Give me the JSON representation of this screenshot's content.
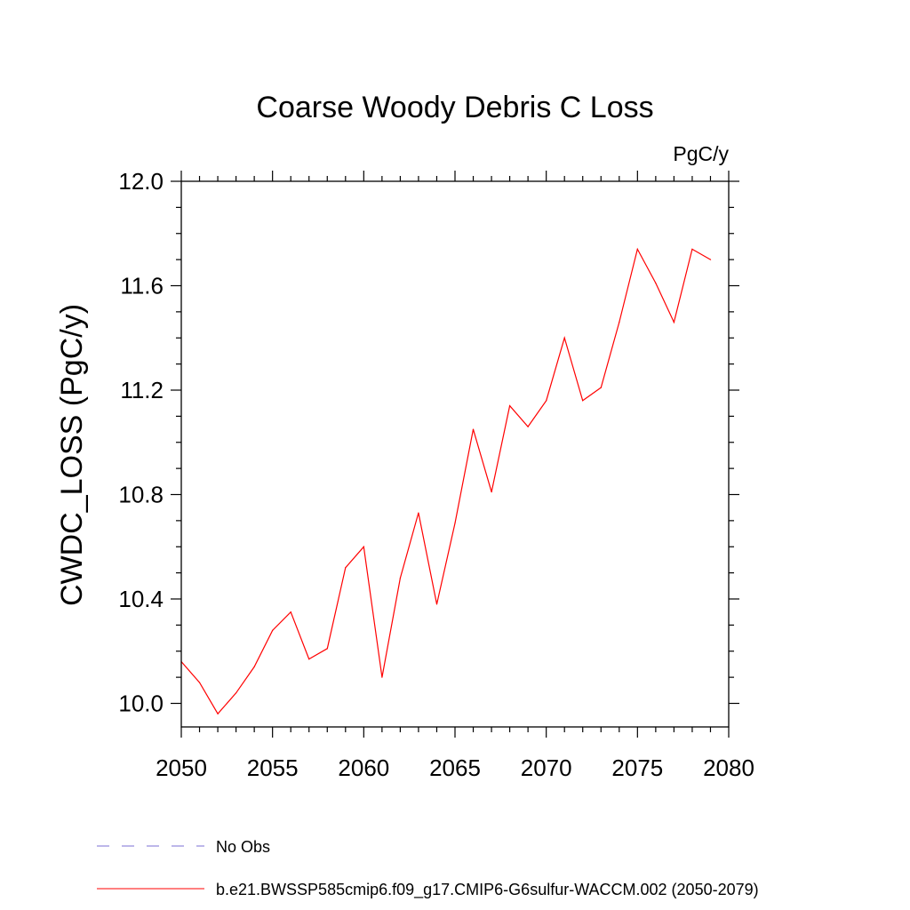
{
  "chart_data": {
    "type": "line",
    "title": "Coarse Woody Debris C Loss",
    "units_label": "PgC/y",
    "ylabel": "CWDC_LOSS  (PgC/y)",
    "xlabel": "",
    "xlim": [
      2050,
      2080
    ],
    "ylim": [
      9.9,
      12.05
    ],
    "x_ticks": [
      2050,
      2055,
      2060,
      2065,
      2070,
      2075,
      2080
    ],
    "y_ticks": [
      10.0,
      10.4,
      10.8,
      11.2,
      11.6,
      12.0
    ],
    "grid": false,
    "legend_position": "bottom-left",
    "series": [
      {
        "name": "b.e21.BWSSP585cmip6.f09_g17.CMIP6-G6sulfur-WACCM.002 (2050-2079)",
        "color": "#ff0000",
        "x": [
          2050,
          2051,
          2052,
          2053,
          2054,
          2055,
          2056,
          2057,
          2058,
          2059,
          2060,
          2061,
          2062,
          2063,
          2064,
          2065,
          2066,
          2067,
          2068,
          2069,
          2070,
          2071,
          2072,
          2073,
          2074,
          2075,
          2076,
          2077,
          2078,
          2079
        ],
        "y": [
          10.16,
          10.08,
          9.96,
          10.04,
          10.14,
          10.28,
          10.35,
          10.17,
          10.21,
          10.52,
          10.6,
          10.1,
          10.48,
          10.73,
          10.38,
          10.69,
          11.05,
          10.81,
          11.14,
          11.06,
          11.16,
          11.4,
          11.16,
          11.21,
          11.46,
          11.74,
          11.61,
          11.46,
          11.74,
          11.7
        ]
      }
    ],
    "legend": [
      {
        "label": "No Obs",
        "color": "#7b6fd6",
        "style": "dashed"
      },
      {
        "label": "b.e21.BWSSP585cmip6.f09_g17.CMIP6-G6sulfur-WACCM.002 (2050-2079)",
        "color": "#ff0000",
        "style": "solid"
      }
    ]
  }
}
